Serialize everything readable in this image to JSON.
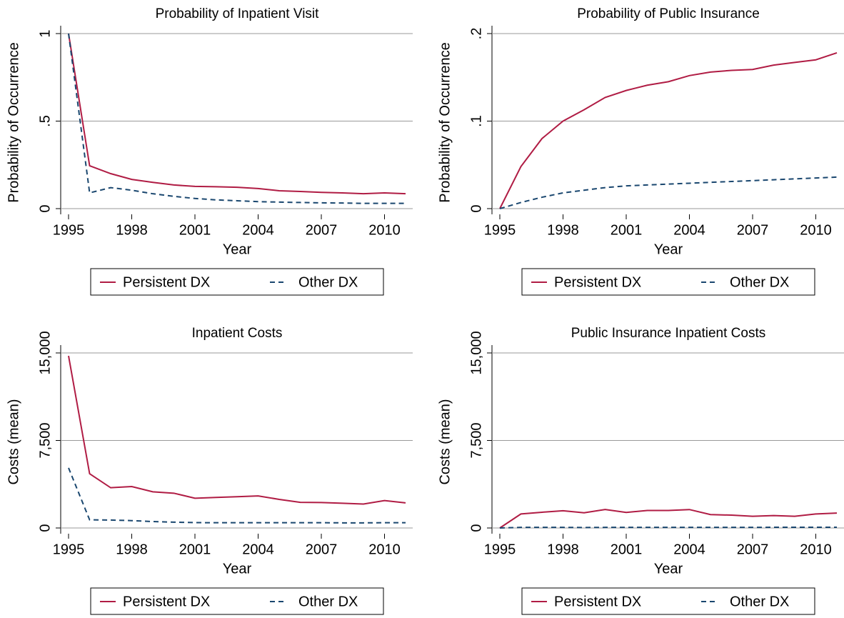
{
  "chart_data": [
    {
      "type": "line",
      "title": "Probability of Inpatient Visit",
      "x_label": "Year",
      "y_label": "Probability of Occurrence",
      "x": [
        1995,
        1996,
        1997,
        1998,
        1999,
        2000,
        2001,
        2002,
        2003,
        2004,
        2005,
        2006,
        2007,
        2008,
        2009,
        2010,
        2011
      ],
      "xlim": [
        1995,
        2011
      ],
      "xticks": [
        1995,
        1998,
        2001,
        2004,
        2007,
        2010
      ],
      "ylim": [
        0,
        1
      ],
      "yticks": [
        0,
        {
          "value": 0.5,
          "label": ".5"
        },
        1
      ],
      "grid": true,
      "legend": "bottom",
      "series": [
        {
          "name": "Persistent DX",
          "color": "#b01c44",
          "line_style": "solid",
          "values": [
            1.0,
            0.245,
            0.2,
            0.167,
            0.15,
            0.135,
            0.127,
            0.125,
            0.122,
            0.115,
            0.102,
            0.098,
            0.093,
            0.09,
            0.085,
            0.09,
            0.085
          ]
        },
        {
          "name": "Other DX",
          "color": "#1a476f",
          "line_style": "dashed",
          "values": [
            1.0,
            0.09,
            0.12,
            0.105,
            0.085,
            0.07,
            0.058,
            0.05,
            0.045,
            0.04,
            0.037,
            0.035,
            0.033,
            0.032,
            0.03,
            0.03,
            0.03
          ]
        }
      ]
    },
    {
      "type": "line",
      "title": "Probability of Public Insurance",
      "x_label": "Year",
      "y_label": "Probability of Occurrence",
      "x": [
        1995,
        1996,
        1997,
        1998,
        1999,
        2000,
        2001,
        2002,
        2003,
        2004,
        2005,
        2006,
        2007,
        2008,
        2009,
        2010,
        2011
      ],
      "xlim": [
        1995,
        2011
      ],
      "xticks": [
        1995,
        1998,
        2001,
        2004,
        2007,
        2010
      ],
      "ylim": [
        0,
        0.2
      ],
      "yticks": [
        0,
        {
          "value": 0.1,
          "label": ".1"
        },
        {
          "value": 0.2,
          "label": ".2"
        }
      ],
      "grid": true,
      "legend": "bottom",
      "series": [
        {
          "name": "Persistent DX",
          "color": "#b01c44",
          "line_style": "solid",
          "values": [
            0,
            0.048,
            0.08,
            0.1,
            0.113,
            0.127,
            0.135,
            0.141,
            0.145,
            0.152,
            0.156,
            0.158,
            0.159,
            0.164,
            0.167,
            0.17,
            0.178
          ]
        },
        {
          "name": "Other DX",
          "color": "#1a476f",
          "line_style": "dashed",
          "values": [
            0,
            0.007,
            0.013,
            0.018,
            0.021,
            0.024,
            0.026,
            0.027,
            0.028,
            0.029,
            0.03,
            0.031,
            0.032,
            0.033,
            0.034,
            0.035,
            0.036
          ]
        }
      ]
    },
    {
      "type": "line",
      "title": "Inpatient Costs",
      "x_label": "Year",
      "y_label": "Costs (mean)",
      "x": [
        1995,
        1996,
        1997,
        1998,
        1999,
        2000,
        2001,
        2002,
        2003,
        2004,
        2005,
        2006,
        2007,
        2008,
        2009,
        2010,
        2011
      ],
      "xlim": [
        1995,
        2011
      ],
      "xticks": [
        1995,
        1998,
        2001,
        2004,
        2007,
        2010
      ],
      "ylim": [
        0,
        15000
      ],
      "yticks": [
        0,
        {
          "value": 7500,
          "label": "7,500"
        },
        {
          "value": 15000,
          "label": "15,000"
        }
      ],
      "grid": true,
      "legend": "bottom",
      "series": [
        {
          "name": "Persistent DX",
          "color": "#b01c44",
          "line_style": "solid",
          "values": [
            14750,
            4650,
            3450,
            3550,
            3100,
            2980,
            2550,
            2620,
            2680,
            2750,
            2450,
            2200,
            2180,
            2120,
            2050,
            2350,
            2150
          ]
        },
        {
          "name": "Other DX",
          "color": "#1a476f",
          "line_style": "dashed",
          "values": [
            5150,
            700,
            680,
            630,
            550,
            500,
            460,
            450,
            450,
            450,
            450,
            450,
            450,
            440,
            440,
            450,
            450
          ]
        }
      ]
    },
    {
      "type": "line",
      "title": "Public Insurance Inpatient Costs",
      "x_label": "Year",
      "y_label": "Costs (mean)",
      "x": [
        1995,
        1996,
        1997,
        1998,
        1999,
        2000,
        2001,
        2002,
        2003,
        2004,
        2005,
        2006,
        2007,
        2008,
        2009,
        2010,
        2011
      ],
      "xlim": [
        1995,
        2011
      ],
      "xticks": [
        1995,
        1998,
        2001,
        2004,
        2007,
        2010
      ],
      "ylim": [
        0,
        15000
      ],
      "yticks": [
        0,
        {
          "value": 7500,
          "label": "7,500"
        },
        {
          "value": 15000,
          "label": "15,000"
        }
      ],
      "grid": true,
      "legend": "bottom",
      "series": [
        {
          "name": "Persistent DX",
          "color": "#b01c44",
          "line_style": "solid",
          "values": [
            0,
            1200,
            1350,
            1480,
            1300,
            1580,
            1330,
            1500,
            1500,
            1580,
            1150,
            1100,
            1000,
            1060,
            1000,
            1200,
            1280
          ]
        },
        {
          "name": "Other DX",
          "color": "#1a476f",
          "line_style": "dashed",
          "values": [
            0,
            50,
            50,
            50,
            40,
            50,
            50,
            50,
            50,
            50,
            50,
            50,
            50,
            60,
            60,
            60,
            60
          ]
        }
      ]
    }
  ]
}
